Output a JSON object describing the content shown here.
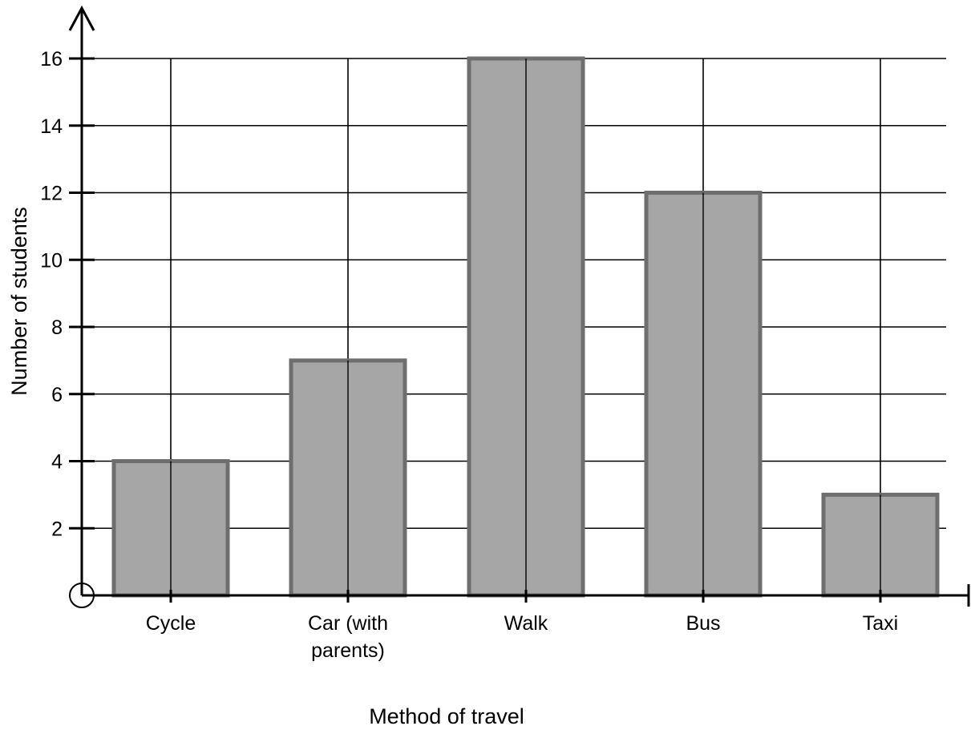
{
  "chart_data": {
    "type": "bar",
    "categories": [
      [
        "Cycle"
      ],
      [
        "Car (with",
        "parents)"
      ],
      [
        "Walk"
      ],
      [
        "Bus"
      ],
      [
        "Taxi"
      ]
    ],
    "values": [
      4,
      7,
      16,
      12,
      3
    ],
    "ylim": [
      0,
      16
    ],
    "yticks": [
      2,
      4,
      6,
      8,
      10,
      12,
      14,
      16
    ],
    "xlabel": "Method of travel",
    "ylabel": "Number of students",
    "grid": true,
    "colors": {
      "bar_fill": "#a6a6a6",
      "bar_stroke": "#6e6e6e",
      "grid": "#000000",
      "axis": "#000000"
    }
  }
}
